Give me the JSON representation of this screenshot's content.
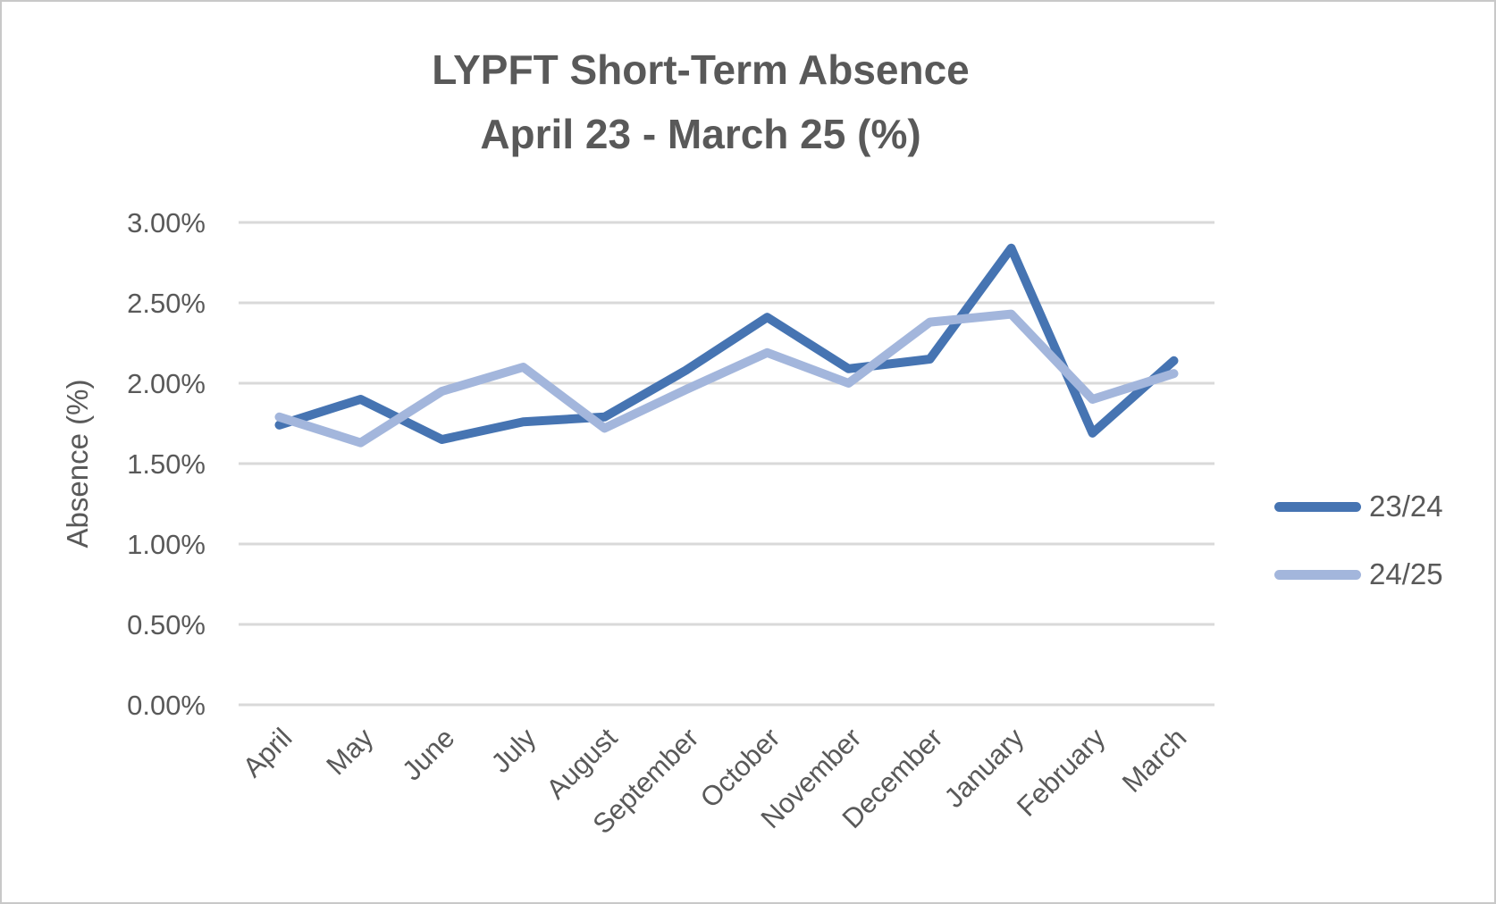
{
  "window": {
    "background_color": "#ffffff",
    "border_color": "#c8c8c8"
  },
  "chart_data": {
    "type": "line",
    "title_line1": "LYPFT Short-Term Absence",
    "title_line2": "April 23 - March 25 (%)",
    "ylabel": "Absence (%)",
    "categories": [
      "April",
      "May",
      "June",
      "July",
      "August",
      "September",
      "October",
      "November",
      "December",
      "January",
      "February",
      "March"
    ],
    "series": [
      {
        "name": "23/24",
        "color": "#4674B2",
        "values": [
          1.74,
          1.9,
          1.65,
          1.76,
          1.79,
          2.08,
          2.41,
          2.09,
          2.15,
          2.84,
          1.69,
          2.14
        ]
      },
      {
        "name": "24/25",
        "color": "#A3B6DC",
        "values": [
          1.79,
          1.63,
          1.95,
          2.1,
          1.72,
          1.96,
          2.19,
          2.0,
          2.38,
          2.43,
          1.9,
          2.06
        ]
      }
    ],
    "y_ticks": [
      "0.00%",
      "0.50%",
      "1.00%",
      "1.50%",
      "2.00%",
      "2.50%",
      "3.00%"
    ],
    "y_tick_step": 0.5,
    "ylim": [
      0,
      3
    ],
    "grid": true,
    "grid_color": "#d9d9d9",
    "text_color": "#595959",
    "legend_position": "right",
    "x_label_rotation_deg": -45,
    "line_width": 10
  }
}
